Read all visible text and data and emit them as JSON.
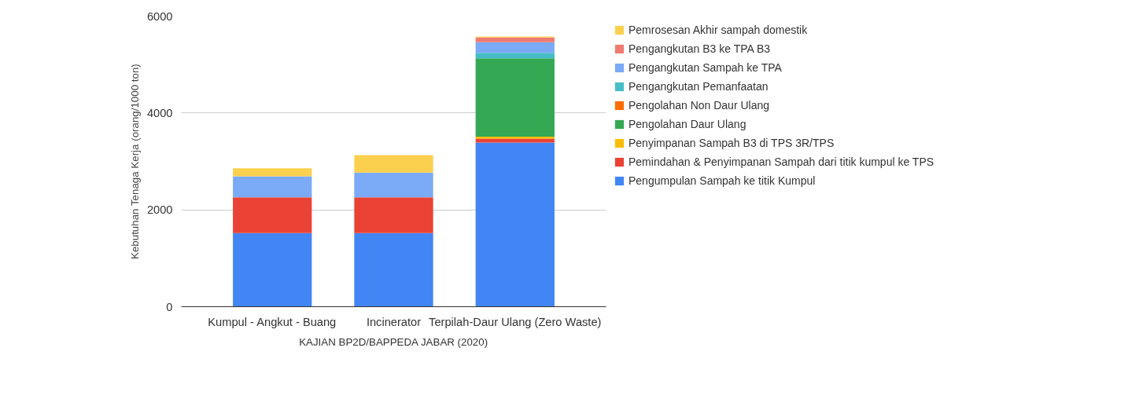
{
  "chart_data": {
    "type": "bar",
    "stacked": true,
    "ylabel": "Kebutuhan Tenaga Kerja (orang/1000 ton)",
    "categories": [
      "Kumpul - Angkut - Buang",
      "Incinerator",
      "Terpilah-Daur Ulang (Zero Waste)"
    ],
    "series": [
      {
        "name": "Pengumpulan Sampah ke titik Kumpul",
        "color": "#4285f4",
        "values": [
          1520,
          1520,
          3390
        ]
      },
      {
        "name": "Pemindahan & Penyimpanan Sampah dari titik kumpul ke TPS",
        "color": "#ea4335",
        "values": [
          740,
          740,
          80
        ]
      },
      {
        "name": "Penyimpanan Sampah B3 di TPS 3R/TPS",
        "color": "#fbbc04",
        "values": [
          0,
          0,
          40
        ]
      },
      {
        "name": "Pengolahan Daur Ulang",
        "color": "#34a853",
        "values": [
          0,
          0,
          1620
        ]
      },
      {
        "name": "Pengolahan Non Daur Ulang",
        "color": "#ff6d01",
        "values": [
          0,
          0,
          0
        ]
      },
      {
        "name": "Pengangkutan Pemanfaatan",
        "color": "#46bdc6",
        "values": [
          0,
          0,
          110
        ]
      },
      {
        "name": "Pengangkutan Sampah ke TPA",
        "color": "#7baaf7",
        "values": [
          430,
          510,
          220
        ]
      },
      {
        "name": "Pengangkutan B3 ke TPA B3",
        "color": "#f07b72",
        "values": [
          0,
          0,
          100
        ]
      },
      {
        "name": "Pemrosesan Akhir sampah domestik",
        "color": "#fcd04f",
        "values": [
          170,
          360,
          20
        ]
      }
    ],
    "ylim": [
      0,
      6000
    ],
    "yticks": [
      0,
      2000,
      4000,
      6000
    ],
    "grid": "y",
    "legend": "right",
    "annotations": [
      "KAJIAN BP2D/BAPPEDA JABAR (2020)"
    ]
  }
}
